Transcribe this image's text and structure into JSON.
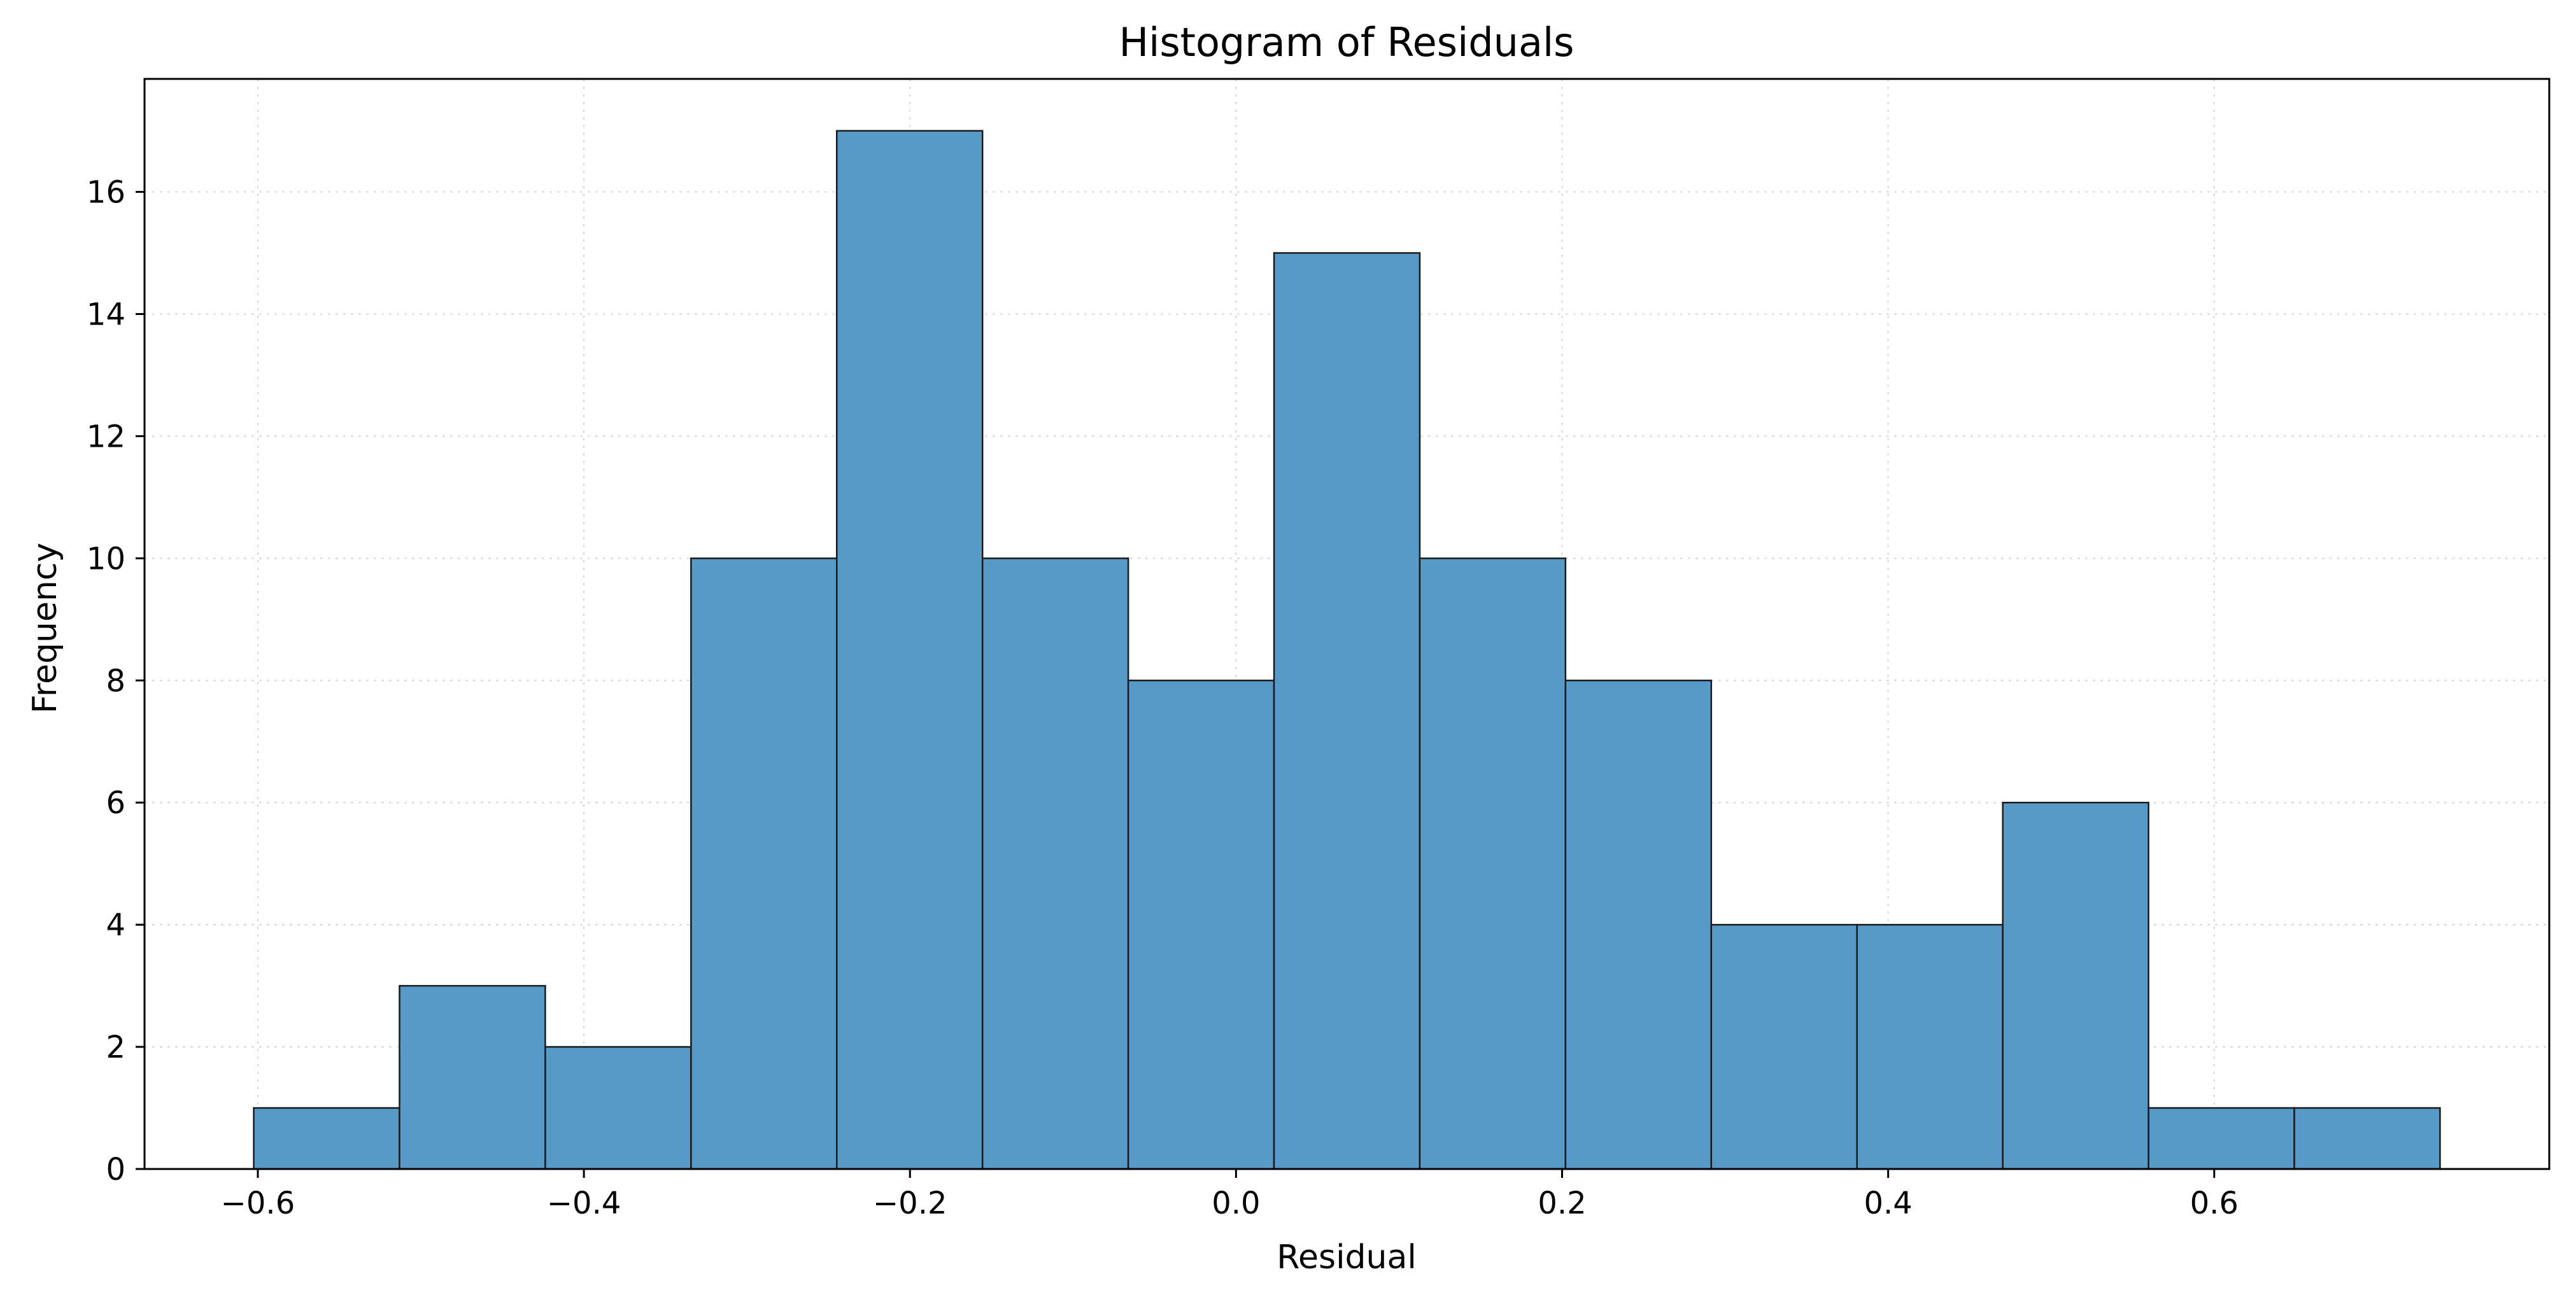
{
  "chart_data": {
    "type": "histogram",
    "title": "Histogram of Residuals",
    "xlabel": "Residual",
    "ylabel": "Frequency",
    "bin_edges": [
      -0.6025,
      -0.5131,
      -0.4237,
      -0.3343,
      -0.2449,
      -0.1555,
      -0.0661,
      0.0233,
      0.1127,
      0.2021,
      0.2915,
      0.3809,
      0.4703,
      0.5597,
      0.6491,
      0.7385
    ],
    "counts": [
      1,
      3,
      2,
      10,
      17,
      10,
      8,
      15,
      10,
      8,
      4,
      4,
      6,
      1,
      1
    ],
    "xlim": [
      -0.6695,
      0.8055
    ],
    "ylim": [
      0,
      17.85
    ],
    "x_ticks": [
      {
        "value": -0.6,
        "label": "−0.6"
      },
      {
        "value": -0.4,
        "label": "−0.4"
      },
      {
        "value": -0.2,
        "label": "−0.2"
      },
      {
        "value": 0.0,
        "label": "0.0"
      },
      {
        "value": 0.2,
        "label": "0.2"
      },
      {
        "value": 0.4,
        "label": "0.4"
      },
      {
        "value": 0.6,
        "label": "0.6"
      }
    ],
    "y_ticks": [
      {
        "value": 0,
        "label": "0"
      },
      {
        "value": 2,
        "label": "2"
      },
      {
        "value": 4,
        "label": "4"
      },
      {
        "value": 6,
        "label": "6"
      },
      {
        "value": 8,
        "label": "8"
      },
      {
        "value": 10,
        "label": "10"
      },
      {
        "value": 12,
        "label": "12"
      },
      {
        "value": 14,
        "label": "14"
      },
      {
        "value": 16,
        "label": "16"
      }
    ],
    "grid": true,
    "bar_color": "#5799c7",
    "edge_color": "#1a1a1a"
  }
}
